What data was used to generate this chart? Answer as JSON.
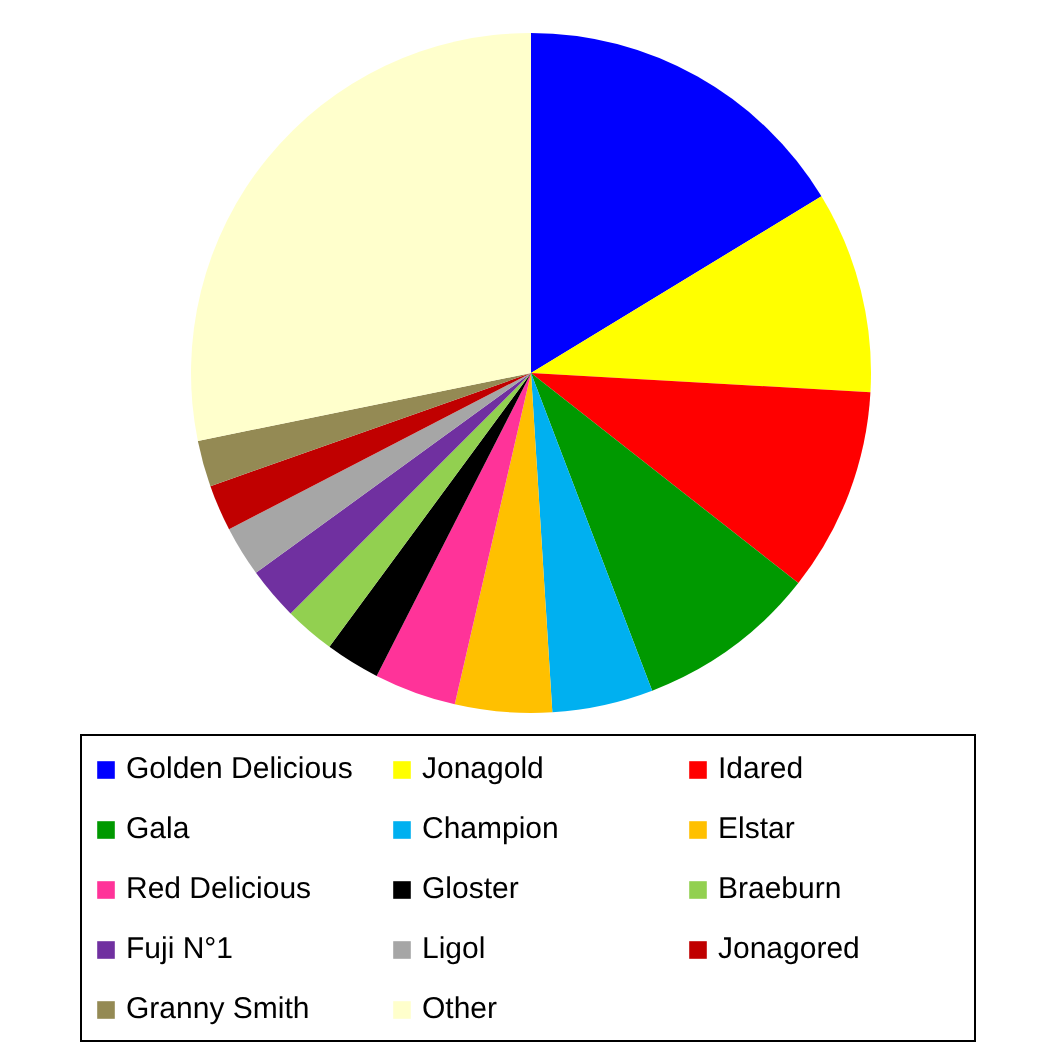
{
  "chart_data": {
    "type": "pie",
    "categories": [
      "Golden Delicious",
      "Jonagold",
      "Idared",
      "Gala",
      "Champion",
      "Elstar",
      "Red Delicious",
      "Gloster",
      "Braeburn",
      "Fuji N°1",
      "Ligol",
      "Jonagored",
      "Granny Smith",
      "Other"
    ],
    "values": [
      16.3,
      9.6,
      9.7,
      8.6,
      4.8,
      4.6,
      3.9,
      2.6,
      2.4,
      2.5,
      2.4,
      2.2,
      2.2,
      28.2
    ],
    "colors": [
      "#0000ff",
      "#ffff00",
      "#ff0000",
      "#009900",
      "#00b0f0",
      "#ffc000",
      "#ff3399",
      "#000000",
      "#92d050",
      "#7030a0",
      "#a6a6a6",
      "#c00000",
      "#948a54",
      "#ffffcc"
    ],
    "legend": "bottom"
  }
}
